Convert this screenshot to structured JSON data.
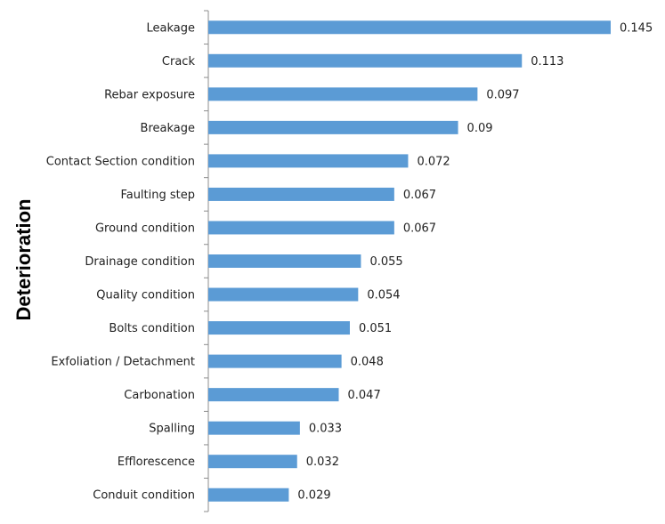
{
  "chart_data": {
    "type": "bar",
    "orientation": "horizontal",
    "title": "",
    "xlabel": "",
    "ylabel": "Deterioration",
    "categories": [
      "Leakage",
      "Crack",
      "Rebar exposure",
      "Breakage",
      "Contact Section condition",
      "Faulting step",
      "Ground condition",
      "Drainage condition",
      "Quality condition",
      "Bolts condition",
      "Exfoliation / Detachment",
      "Carbonation",
      "Spalling",
      "Efflorescence",
      "Conduit condition"
    ],
    "values": [
      0.145,
      0.113,
      0.097,
      0.09,
      0.072,
      0.067,
      0.067,
      0.055,
      0.054,
      0.051,
      0.048,
      0.047,
      0.033,
      0.032,
      0.029
    ],
    "value_labels": [
      "0.145",
      "0.113",
      "0.097",
      "0.09",
      "0.072",
      "0.067",
      "0.067",
      "0.055",
      "0.054",
      "0.051",
      "0.048",
      "0.047",
      "0.033",
      "0.032",
      "0.029"
    ],
    "xlim": [
      0,
      0.145
    ],
    "grid": false,
    "legend": "none",
    "bar_color": "#5b9bd5",
    "axis_color": "#8c8c8c"
  }
}
